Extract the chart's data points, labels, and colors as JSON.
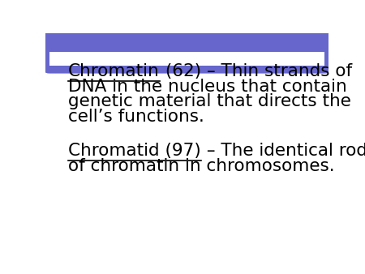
{
  "background_color": "#ffffff",
  "slide_bg": "#ffffff",
  "header_color": "#6666cc",
  "border_color": "#88bbbb",
  "text_color": "#000000",
  "para1_underlined": "Chromatin",
  "para1_rest_line1": " (62) – Thin strands of",
  "para1_line2": "DNA in the nucleus that contain",
  "para1_line3": "genetic material that directs the",
  "para1_line4": "cell’s functions.",
  "para2_underlined": "Chromatid (97)",
  "para2_rest_line1": " – The identical rods",
  "para2_line2": "of chromatin in chromosomes.",
  "font_size": 15.5,
  "font_family": "DejaVu Sans",
  "underline_only_word1": "Chromatin",
  "underline_word2": "Chromatid (97)"
}
